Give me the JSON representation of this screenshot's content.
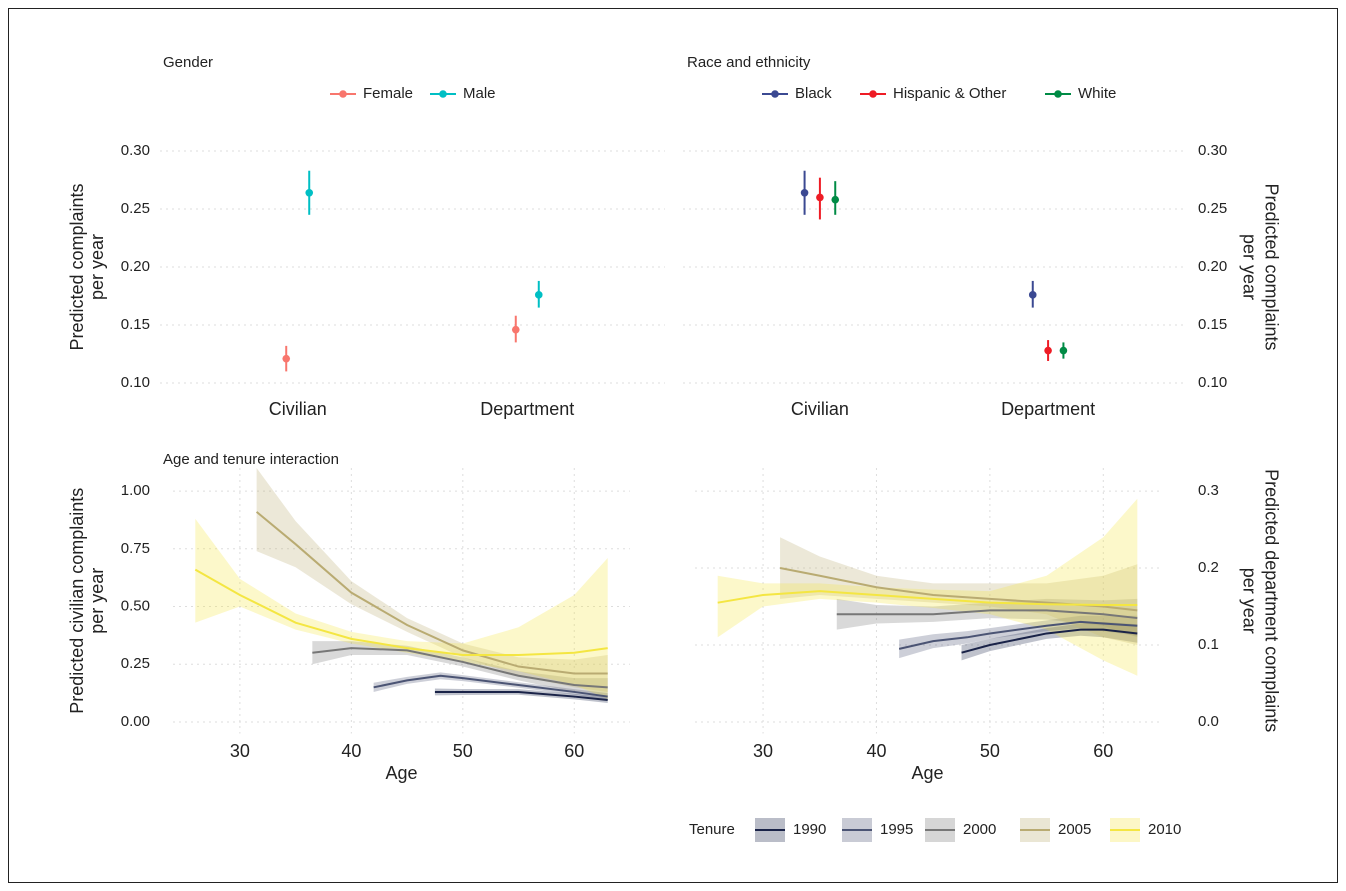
{
  "chart_data": [
    {
      "type": "pointrange",
      "title": "Gender",
      "y_label": [
        "Predicted complaints",
        "per year"
      ],
      "categories": [
        "Civilian",
        "Department"
      ],
      "ylim": [
        0.09,
        0.31
      ],
      "yticks": [
        {
          "value": 0.1,
          "label": "0.10"
        },
        0.15,
        {
          "value": 0.2,
          "label": "0.20"
        },
        0.25,
        {
          "value": 0.3,
          "label": "0.30"
        }
      ],
      "grid": true,
      "series": [
        {
          "name": "Female",
          "color": "#F8766D",
          "values": [
            0.121,
            0.146
          ],
          "lower": [
            0.11,
            0.135
          ],
          "upper": [
            0.132,
            0.158
          ]
        },
        {
          "name": "Male",
          "color": "#00BFC4",
          "values": [
            0.264,
            0.176
          ],
          "lower": [
            0.245,
            0.165
          ],
          "upper": [
            0.283,
            0.188
          ]
        }
      ]
    },
    {
      "type": "pointrange",
      "title": "Race and ethnicity",
      "y_label": [
        "Predicted complaints",
        "per year"
      ],
      "categories": [
        "Civilian",
        "Department"
      ],
      "ylim": [
        0.09,
        0.31
      ],
      "yticks": [
        {
          "value": 0.1,
          "label": "0.10"
        },
        0.15,
        {
          "value": 0.2,
          "label": "0.20"
        },
        0.25,
        {
          "value": 0.3,
          "label": "0.30"
        }
      ],
      "grid": true,
      "series": [
        {
          "name": "Black",
          "color": "#3B4992",
          "values": [
            0.264,
            0.176
          ],
          "lower": [
            0.245,
            0.165
          ],
          "upper": [
            0.283,
            0.188
          ]
        },
        {
          "name": "Hispanic & Other",
          "color": "#EE1C25",
          "values": [
            0.26,
            0.128
          ],
          "lower": [
            0.241,
            0.119
          ],
          "upper": [
            0.277,
            0.137
          ]
        },
        {
          "name": "White",
          "color": "#008B45",
          "values": [
            0.258,
            0.128
          ],
          "lower": [
            0.245,
            0.121
          ],
          "upper": [
            0.274,
            0.135
          ]
        }
      ]
    },
    {
      "type": "line",
      "title": "Age and tenure interaction",
      "x_label": "Age",
      "y_label": [
        "Predicted civilian complaints",
        "per year"
      ],
      "xlim": [
        24,
        65
      ],
      "xticks": [
        30,
        40,
        50,
        60
      ],
      "ylim": [
        -0.05,
        1.1
      ],
      "yticks": [
        {
          "value": 0,
          "label": "0.00"
        },
        0.25,
        {
          "value": 0.5,
          "label": "0.50"
        },
        0.75,
        {
          "value": 1,
          "label": "1.00"
        }
      ],
      "grid": true,
      "legend_title": "Tenure",
      "series": [
        {
          "name": "1990",
          "color": "#1A2348",
          "x": [
            47.5,
            50,
            55,
            60,
            63
          ],
          "values": [
            0.13,
            0.13,
            0.13,
            0.11,
            0.095
          ],
          "lower": [
            0.115,
            0.117,
            0.118,
            0.098,
            0.082
          ],
          "upper": [
            0.145,
            0.143,
            0.142,
            0.122,
            0.108
          ]
        },
        {
          "name": "1995",
          "color": "#4B5474",
          "x": [
            42,
            45,
            48,
            50,
            55,
            60,
            63
          ],
          "values": [
            0.15,
            0.18,
            0.2,
            0.19,
            0.16,
            0.13,
            0.11
          ],
          "lower": [
            0.13,
            0.165,
            0.185,
            0.177,
            0.148,
            0.118,
            0.095
          ],
          "upper": [
            0.17,
            0.195,
            0.215,
            0.203,
            0.172,
            0.142,
            0.125
          ]
        },
        {
          "name": "2000",
          "color": "#777777",
          "x": [
            36.5,
            40,
            45,
            50,
            55,
            60,
            63
          ],
          "values": [
            0.3,
            0.32,
            0.31,
            0.26,
            0.2,
            0.16,
            0.15
          ],
          "lower": [
            0.25,
            0.29,
            0.29,
            0.24,
            0.18,
            0.13,
            0.11
          ],
          "upper": [
            0.35,
            0.35,
            0.33,
            0.28,
            0.22,
            0.19,
            0.19
          ]
        },
        {
          "name": "2005",
          "color": "#B9AB72",
          "x": [
            31.5,
            35,
            40,
            45,
            50,
            55,
            60,
            63
          ],
          "values": [
            0.91,
            0.77,
            0.56,
            0.42,
            0.31,
            0.24,
            0.21,
            0.21
          ],
          "lower": [
            0.74,
            0.67,
            0.51,
            0.39,
            0.28,
            0.2,
            0.15,
            0.13
          ],
          "upper": [
            1.1,
            0.87,
            0.61,
            0.45,
            0.34,
            0.28,
            0.27,
            0.29
          ]
        },
        {
          "name": "2010",
          "color": "#F4E642",
          "x": [
            26,
            30,
            35,
            40,
            45,
            50,
            55,
            60,
            63
          ],
          "values": [
            0.66,
            0.55,
            0.43,
            0.36,
            0.32,
            0.29,
            0.29,
            0.3,
            0.32
          ],
          "lower": [
            0.43,
            0.5,
            0.4,
            0.34,
            0.3,
            0.26,
            0.22,
            0.16,
            0.1
          ],
          "upper": [
            0.88,
            0.62,
            0.47,
            0.39,
            0.35,
            0.34,
            0.41,
            0.55,
            0.71
          ]
        }
      ]
    },
    {
      "type": "line",
      "x_label": "Age",
      "y_label": [
        "Predicted department complaints",
        "per year"
      ],
      "xlim": [
        24,
        65
      ],
      "xticks": [
        30,
        40,
        50,
        60
      ],
      "ylim": [
        -0.015,
        0.33
      ],
      "yticks": [
        {
          "value": 0,
          "label": "0.0"
        },
        0.1,
        0.2,
        0.3
      ],
      "grid": true,
      "series": [
        {
          "color": "#1A2348",
          "x": [
            47.5,
            50,
            55,
            58,
            60,
            63
          ],
          "values": [
            0.09,
            0.1,
            0.115,
            0.12,
            0.12,
            0.115
          ],
          "lower": [
            0.08,
            0.092,
            0.108,
            0.112,
            0.11,
            0.103
          ],
          "upper": [
            0.1,
            0.108,
            0.122,
            0.128,
            0.13,
            0.127
          ]
        },
        {
          "color": "#4B5474",
          "x": [
            42,
            45,
            48,
            50,
            55,
            58,
            60,
            63
          ],
          "values": [
            0.095,
            0.105,
            0.11,
            0.115,
            0.125,
            0.13,
            0.128,
            0.125
          ],
          "lower": [
            0.083,
            0.096,
            0.102,
            0.108,
            0.118,
            0.122,
            0.118,
            0.112
          ],
          "upper": [
            0.107,
            0.114,
            0.118,
            0.122,
            0.132,
            0.138,
            0.138,
            0.138
          ]
        },
        {
          "color": "#777777",
          "x": [
            36.5,
            40,
            45,
            50,
            55,
            60,
            63
          ],
          "values": [
            0.14,
            0.14,
            0.14,
            0.145,
            0.145,
            0.14,
            0.135
          ],
          "lower": [
            0.12,
            0.128,
            0.13,
            0.135,
            0.133,
            0.125,
            0.11
          ],
          "upper": [
            0.16,
            0.152,
            0.15,
            0.155,
            0.16,
            0.158,
            0.16
          ]
        },
        {
          "color": "#B9AB72",
          "x": [
            31.5,
            35,
            40,
            45,
            50,
            55,
            60,
            63
          ],
          "values": [
            0.2,
            0.19,
            0.175,
            0.165,
            0.16,
            0.155,
            0.15,
            0.145
          ],
          "lower": [
            0.16,
            0.165,
            0.16,
            0.155,
            0.15,
            0.14,
            0.11,
            0.1
          ],
          "upper": [
            0.24,
            0.215,
            0.19,
            0.18,
            0.18,
            0.18,
            0.19,
            0.205
          ]
        },
        {
          "color": "#F4E642",
          "x": [
            26,
            30,
            35,
            40,
            45,
            50,
            55,
            60,
            63
          ],
          "values": [
            0.155,
            0.165,
            0.17,
            0.165,
            0.16,
            0.155,
            0.153,
            0.152,
            0.152
          ],
          "lower": [
            0.11,
            0.15,
            0.16,
            0.155,
            0.148,
            0.14,
            0.12,
            0.08,
            0.06
          ],
          "upper": [
            0.19,
            0.18,
            0.18,
            0.175,
            0.172,
            0.17,
            0.19,
            0.24,
            0.29
          ]
        }
      ]
    }
  ]
}
